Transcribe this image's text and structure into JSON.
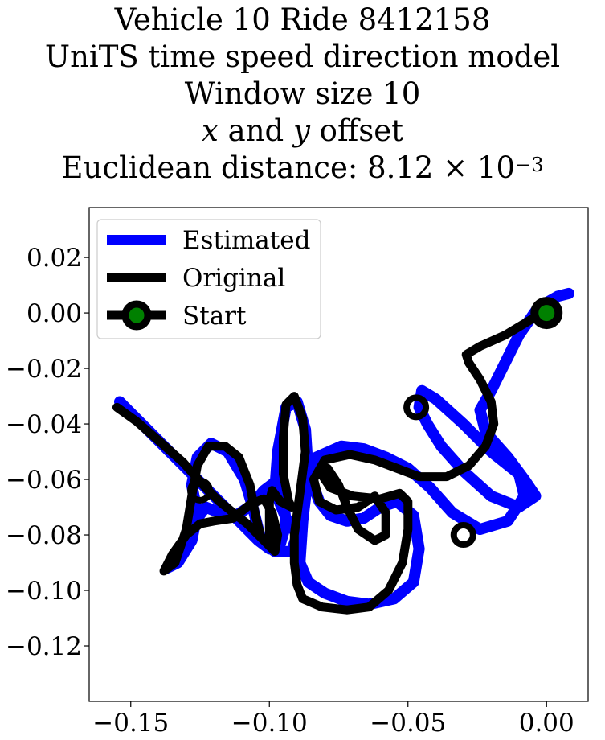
{
  "title": {
    "line1": "Vehicle 10 Ride 8412158",
    "line2": "UniTS time speed direction model",
    "line3": "Window size 10",
    "line4_var1": "x",
    "line4_and": " and ",
    "line4_var2": "y",
    "line4_rest": " offset",
    "line5_prefix": "Euclidean distance: 8.12",
    "line5_times": " × 10",
    "line5_exp": "−3"
  },
  "chart_data": {
    "type": "line",
    "xlim": [
      -0.165,
      0.015
    ],
    "ylim": [
      -0.14,
      0.038
    ],
    "x_ticks": [
      -0.15,
      -0.1,
      -0.05,
      0.0
    ],
    "x_tick_labels": [
      "−0.15",
      "−0.10",
      "−0.05",
      "0.00"
    ],
    "y_ticks": [
      0.02,
      0.0,
      -0.02,
      -0.04,
      -0.06,
      -0.08,
      -0.1,
      -0.12
    ],
    "y_tick_labels": [
      "0.02",
      "0.00",
      "−0.02",
      "−0.04",
      "−0.06",
      "−0.08",
      "−0.10",
      "−0.12"
    ],
    "grid": false,
    "legend_position": "upper-left",
    "series": [
      {
        "name": "Estimated",
        "color": "#0000ff",
        "points": [
          [
            0.008,
            0.007
          ],
          [
            0.004,
            0.006
          ],
          [
            -0.003,
            0.002
          ],
          [
            -0.01,
            -0.008
          ],
          [
            -0.016,
            -0.02
          ],
          [
            -0.02,
            -0.028
          ],
          [
            -0.024,
            -0.035
          ],
          [
            -0.022,
            -0.043
          ],
          [
            -0.014,
            -0.052
          ],
          [
            -0.008,
            -0.06
          ],
          [
            -0.004,
            -0.066
          ],
          [
            -0.01,
            -0.07
          ],
          [
            -0.02,
            -0.066
          ],
          [
            -0.03,
            -0.057
          ],
          [
            -0.038,
            -0.048
          ],
          [
            -0.043,
            -0.04
          ],
          [
            -0.046,
            -0.034
          ],
          [
            -0.045,
            -0.028
          ],
          [
            -0.04,
            -0.031
          ],
          [
            -0.03,
            -0.04
          ],
          [
            -0.02,
            -0.05
          ],
          [
            -0.01,
            -0.058
          ],
          [
            -0.008,
            -0.066
          ],
          [
            -0.014,
            -0.075
          ],
          [
            -0.024,
            -0.078
          ],
          [
            -0.034,
            -0.072
          ],
          [
            -0.042,
            -0.063
          ],
          [
            -0.05,
            -0.056
          ],
          [
            -0.058,
            -0.052
          ],
          [
            -0.066,
            -0.049
          ],
          [
            -0.074,
            -0.048
          ],
          [
            -0.083,
            -0.052
          ],
          [
            -0.085,
            -0.06
          ],
          [
            -0.082,
            -0.068
          ],
          [
            -0.078,
            -0.073
          ],
          [
            -0.072,
            -0.075
          ],
          [
            -0.066,
            -0.074
          ],
          [
            -0.06,
            -0.07
          ],
          [
            -0.054,
            -0.068
          ],
          [
            -0.048,
            -0.073
          ],
          [
            -0.046,
            -0.085
          ],
          [
            -0.048,
            -0.097
          ],
          [
            -0.055,
            -0.103
          ],
          [
            -0.064,
            -0.105
          ],
          [
            -0.072,
            -0.104
          ],
          [
            -0.08,
            -0.101
          ],
          [
            -0.086,
            -0.097
          ],
          [
            -0.089,
            -0.09
          ],
          [
            -0.088,
            -0.075
          ],
          [
            -0.086,
            -0.058
          ],
          [
            -0.087,
            -0.042
          ],
          [
            -0.09,
            -0.032
          ],
          [
            -0.094,
            -0.034
          ],
          [
            -0.097,
            -0.05
          ],
          [
            -0.098,
            -0.064
          ],
          [
            -0.094,
            -0.074
          ],
          [
            -0.09,
            -0.08
          ],
          [
            -0.092,
            -0.086
          ],
          [
            -0.098,
            -0.086
          ],
          [
            -0.103,
            -0.082
          ],
          [
            -0.106,
            -0.07
          ],
          [
            -0.109,
            -0.06
          ],
          [
            -0.115,
            -0.05
          ],
          [
            -0.121,
            -0.047
          ],
          [
            -0.126,
            -0.052
          ],
          [
            -0.128,
            -0.062
          ],
          [
            -0.126,
            -0.072
          ],
          [
            -0.128,
            -0.082
          ],
          [
            -0.133,
            -0.09
          ],
          [
            -0.137,
            -0.092
          ],
          [
            -0.132,
            -0.084
          ],
          [
            -0.126,
            -0.074
          ],
          [
            -0.123,
            -0.07
          ],
          [
            -0.118,
            -0.072
          ],
          [
            -0.112,
            -0.073
          ],
          [
            -0.106,
            -0.069
          ],
          [
            -0.102,
            -0.064
          ],
          [
            -0.098,
            -0.061
          ],
          [
            -0.095,
            -0.066
          ],
          [
            -0.094,
            -0.076
          ],
          [
            -0.096,
            -0.083
          ],
          [
            -0.1,
            -0.085
          ],
          [
            -0.104,
            -0.082
          ],
          [
            -0.112,
            -0.074
          ],
          [
            -0.122,
            -0.064
          ],
          [
            -0.133,
            -0.053
          ],
          [
            -0.144,
            -0.042
          ],
          [
            -0.15,
            -0.036
          ],
          [
            -0.154,
            -0.032
          ]
        ]
      },
      {
        "name": "Original",
        "color": "#000000",
        "points": [
          [
            0.0,
            0.0
          ],
          [
            -0.005,
            -0.002
          ],
          [
            -0.015,
            -0.008
          ],
          [
            -0.024,
            -0.012
          ],
          [
            -0.029,
            -0.015
          ],
          [
            -0.028,
            -0.018
          ],
          [
            -0.024,
            -0.024
          ],
          [
            -0.02,
            -0.032
          ],
          [
            -0.019,
            -0.04
          ],
          [
            -0.022,
            -0.048
          ],
          [
            -0.028,
            -0.055
          ],
          [
            -0.036,
            -0.059
          ],
          [
            -0.046,
            -0.059
          ],
          [
            -0.054,
            -0.056
          ],
          [
            -0.062,
            -0.053
          ],
          [
            -0.071,
            -0.051
          ],
          [
            -0.08,
            -0.053
          ],
          [
            -0.084,
            -0.06
          ],
          [
            -0.082,
            -0.068
          ],
          [
            -0.076,
            -0.071
          ],
          [
            -0.068,
            -0.07
          ],
          [
            -0.062,
            -0.066
          ],
          [
            -0.058,
            -0.072
          ],
          [
            -0.058,
            -0.08
          ],
          [
            -0.062,
            -0.082
          ],
          [
            -0.068,
            -0.078
          ],
          [
            -0.072,
            -0.07
          ],
          [
            -0.075,
            -0.062
          ],
          [
            -0.079,
            -0.056
          ],
          [
            -0.082,
            -0.057
          ],
          [
            -0.078,
            -0.063
          ],
          [
            -0.07,
            -0.066
          ],
          [
            -0.06,
            -0.067
          ],
          [
            -0.053,
            -0.065
          ],
          [
            -0.05,
            -0.068
          ],
          [
            -0.05,
            -0.078
          ],
          [
            -0.052,
            -0.09
          ],
          [
            -0.057,
            -0.1
          ],
          [
            -0.064,
            -0.106
          ],
          [
            -0.072,
            -0.107
          ],
          [
            -0.081,
            -0.106
          ],
          [
            -0.088,
            -0.103
          ],
          [
            -0.09,
            -0.098
          ],
          [
            -0.091,
            -0.09
          ],
          [
            -0.091,
            -0.08
          ],
          [
            -0.089,
            -0.065
          ],
          [
            -0.087,
            -0.05
          ],
          [
            -0.088,
            -0.038
          ],
          [
            -0.091,
            -0.03
          ],
          [
            -0.094,
            -0.033
          ],
          [
            -0.095,
            -0.045
          ],
          [
            -0.095,
            -0.058
          ],
          [
            -0.093,
            -0.068
          ],
          [
            -0.092,
            -0.07
          ],
          [
            -0.096,
            -0.068
          ],
          [
            -0.099,
            -0.064
          ],
          [
            -0.1,
            -0.068
          ],
          [
            -0.1,
            -0.075
          ],
          [
            -0.1,
            -0.082
          ],
          [
            -0.103,
            -0.081
          ],
          [
            -0.105,
            -0.073
          ],
          [
            -0.107,
            -0.062
          ],
          [
            -0.111,
            -0.052
          ],
          [
            -0.116,
            -0.048
          ],
          [
            -0.122,
            -0.048
          ],
          [
            -0.126,
            -0.055
          ],
          [
            -0.128,
            -0.066
          ],
          [
            -0.13,
            -0.078
          ],
          [
            -0.134,
            -0.09
          ],
          [
            -0.138,
            -0.093
          ],
          [
            -0.135,
            -0.087
          ],
          [
            -0.13,
            -0.08
          ],
          [
            -0.125,
            -0.076
          ],
          [
            -0.12,
            -0.075
          ],
          [
            -0.113,
            -0.074
          ],
          [
            -0.107,
            -0.069
          ],
          [
            -0.102,
            -0.067
          ],
          [
            -0.099,
            -0.072
          ],
          [
            -0.097,
            -0.08
          ],
          [
            -0.098,
            -0.086
          ],
          [
            -0.102,
            -0.082
          ],
          [
            -0.108,
            -0.076
          ],
          [
            -0.113,
            -0.072
          ],
          [
            -0.118,
            -0.068
          ],
          [
            -0.123,
            -0.063
          ],
          [
            -0.131,
            -0.054
          ],
          [
            -0.14,
            -0.046
          ],
          [
            -0.148,
            -0.039
          ],
          [
            -0.155,
            -0.034
          ]
        ]
      },
      {
        "name": "Start",
        "color": "#000000",
        "marker_color": "#008000",
        "points": [
          [
            0.0,
            0.0
          ]
        ]
      }
    ],
    "markers": [
      {
        "x": -0.125,
        "y": -0.064
      },
      {
        "x": -0.047,
        "y": -0.034
      },
      {
        "x": -0.03,
        "y": -0.08
      }
    ]
  }
}
